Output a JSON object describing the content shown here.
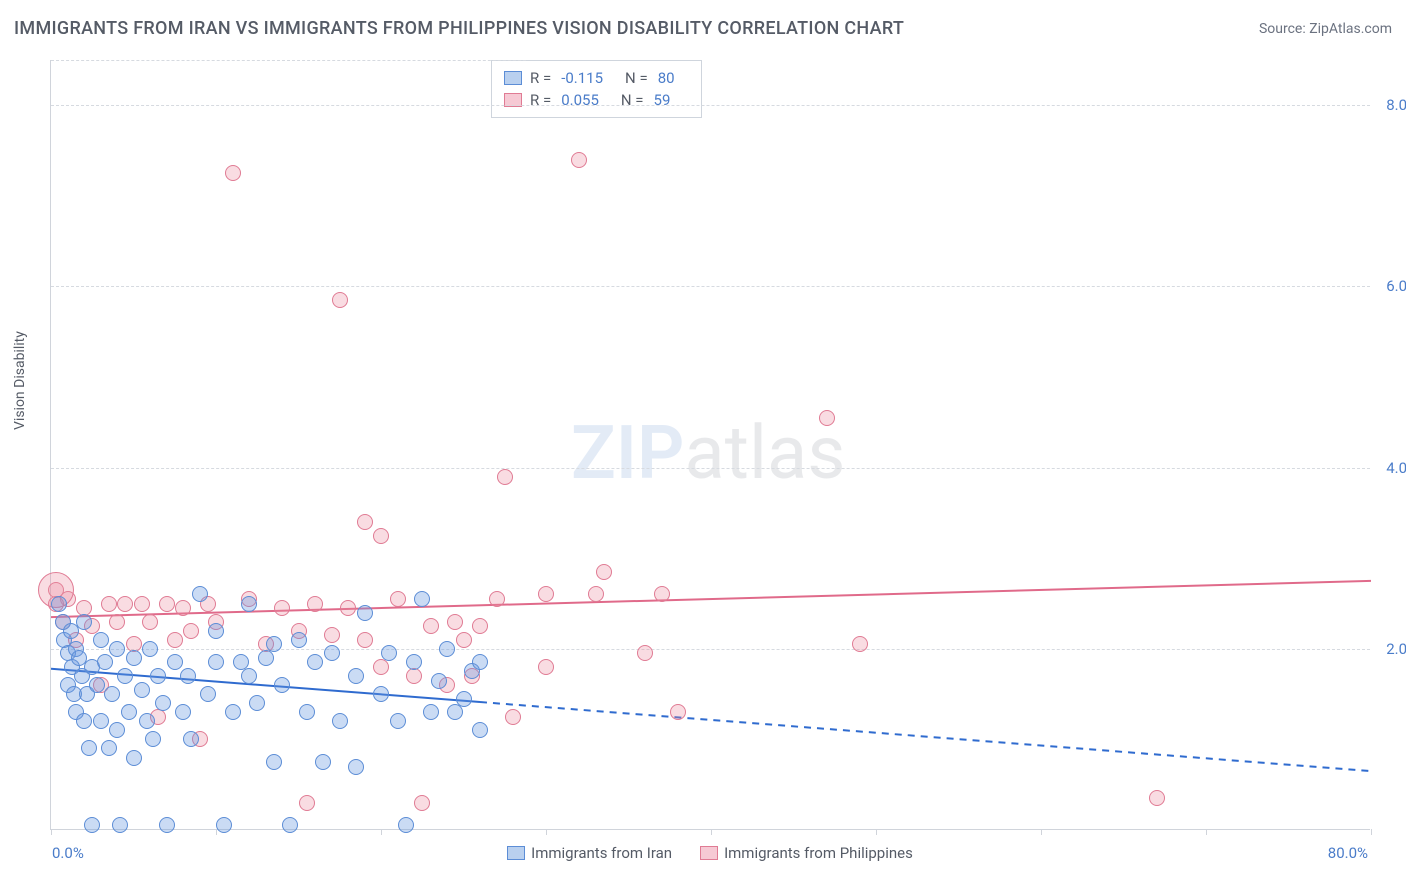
{
  "header": {
    "title": "IMMIGRANTS FROM IRAN VS IMMIGRANTS FROM PHILIPPINES VISION DISABILITY CORRELATION CHART",
    "source": "Source: ZipAtlas.com"
  },
  "watermark": {
    "part1": "ZIP",
    "part2": "atlas"
  },
  "chart": {
    "type": "scatter",
    "ylabel": "Vision Disability",
    "xlim": [
      0,
      80
    ],
    "ylim": [
      0,
      8.5
    ],
    "x_min_label": "0.0%",
    "x_max_label": "80.0%",
    "xtick_positions": [
      0,
      10,
      20,
      30,
      40,
      50,
      60,
      70,
      80
    ],
    "yticks": [
      {
        "v": 2.0,
        "label": "2.0%"
      },
      {
        "v": 4.0,
        "label": "4.0%"
      },
      {
        "v": 6.0,
        "label": "6.0%"
      },
      {
        "v": 8.0,
        "label": "8.0%"
      }
    ],
    "grid_color": "#d6dae0",
    "label_color": "#4a7cc9",
    "series": {
      "iran": {
        "label": "Immigrants from Iran",
        "swatch_fill": "#b9d0ef",
        "swatch_border": "#5c8dd6",
        "R": "-0.115",
        "N": "80",
        "trend": {
          "y_at_x0": 1.78,
          "y_at_x80": 0.65,
          "solid_until_x": 26,
          "color": "#2f6bcf",
          "width": 2
        },
        "marker_radius": 8,
        "points": [
          [
            0.5,
            2.5
          ],
          [
            0.7,
            2.3
          ],
          [
            0.8,
            2.1
          ],
          [
            1.0,
            1.95
          ],
          [
            1.0,
            1.6
          ],
          [
            1.2,
            2.2
          ],
          [
            1.3,
            1.8
          ],
          [
            1.4,
            1.5
          ],
          [
            1.5,
            2.0
          ],
          [
            1.5,
            1.3
          ],
          [
            1.7,
            1.9
          ],
          [
            1.9,
            1.7
          ],
          [
            2.0,
            1.2
          ],
          [
            2.0,
            2.3
          ],
          [
            2.2,
            1.5
          ],
          [
            2.3,
            0.9
          ],
          [
            2.5,
            1.8
          ],
          [
            2.5,
            0.05
          ],
          [
            2.8,
            1.6
          ],
          [
            3.0,
            2.1
          ],
          [
            3.0,
            1.2
          ],
          [
            3.3,
            1.85
          ],
          [
            3.5,
            0.9
          ],
          [
            3.7,
            1.5
          ],
          [
            4.0,
            2.0
          ],
          [
            4.0,
            1.1
          ],
          [
            4.2,
            0.05
          ],
          [
            4.5,
            1.7
          ],
          [
            4.7,
            1.3
          ],
          [
            5.0,
            1.9
          ],
          [
            5.0,
            0.8
          ],
          [
            5.5,
            1.55
          ],
          [
            5.8,
            1.2
          ],
          [
            6.0,
            2.0
          ],
          [
            6.2,
            1.0
          ],
          [
            6.5,
            1.7
          ],
          [
            6.8,
            1.4
          ],
          [
            7.0,
            0.05
          ],
          [
            7.5,
            1.85
          ],
          [
            8.0,
            1.3
          ],
          [
            8.3,
            1.7
          ],
          [
            8.5,
            1.0
          ],
          [
            9.0,
            2.6
          ],
          [
            9.5,
            1.5
          ],
          [
            10.0,
            1.85
          ],
          [
            10.0,
            2.2
          ],
          [
            10.5,
            0.05
          ],
          [
            11.0,
            1.3
          ],
          [
            11.5,
            1.85
          ],
          [
            12.0,
            1.7
          ],
          [
            12.0,
            2.5
          ],
          [
            12.5,
            1.4
          ],
          [
            13.0,
            1.9
          ],
          [
            13.5,
            0.75
          ],
          [
            13.5,
            2.05
          ],
          [
            14.0,
            1.6
          ],
          [
            14.5,
            0.05
          ],
          [
            15.0,
            2.1
          ],
          [
            15.5,
            1.3
          ],
          [
            16.0,
            1.85
          ],
          [
            16.5,
            0.75
          ],
          [
            17.0,
            1.95
          ],
          [
            17.5,
            1.2
          ],
          [
            18.5,
            1.7
          ],
          [
            18.5,
            0.7
          ],
          [
            19.0,
            2.4
          ],
          [
            20.0,
            1.5
          ],
          [
            20.5,
            1.95
          ],
          [
            21.0,
            1.2
          ],
          [
            21.5,
            0.05
          ],
          [
            22.0,
            1.85
          ],
          [
            22.5,
            2.55
          ],
          [
            23.0,
            1.3
          ],
          [
            23.5,
            1.65
          ],
          [
            24.0,
            2.0
          ],
          [
            24.5,
            1.3
          ],
          [
            25.0,
            1.45
          ],
          [
            25.5,
            1.75
          ],
          [
            26.0,
            1.1
          ],
          [
            26.0,
            1.85
          ]
        ]
      },
      "philippines": {
        "label": "Immigrants from Philippines",
        "swatch_fill": "#f6c9d4",
        "swatch_border": "#e07b94",
        "R": "0.055",
        "N": "59",
        "trend": {
          "y_at_x0": 2.35,
          "y_at_x80": 2.75,
          "solid_until_x": 80,
          "color": "#e06a8a",
          "width": 2
        },
        "marker_radius": 8,
        "points": [
          [
            0.3,
            2.65
          ],
          [
            0.7,
            2.3
          ],
          [
            1.0,
            2.55
          ],
          [
            1.5,
            2.1
          ],
          [
            2.0,
            2.45
          ],
          [
            2.5,
            2.25
          ],
          [
            3.0,
            1.6
          ],
          [
            3.5,
            2.5
          ],
          [
            4.0,
            2.3
          ],
          [
            4.5,
            2.5
          ],
          [
            5.0,
            2.05
          ],
          [
            5.5,
            2.5
          ],
          [
            6.0,
            2.3
          ],
          [
            6.5,
            1.25
          ],
          [
            7.0,
            2.5
          ],
          [
            7.5,
            2.1
          ],
          [
            8.0,
            2.45
          ],
          [
            8.5,
            2.2
          ],
          [
            9.0,
            1.0
          ],
          [
            9.5,
            2.5
          ],
          [
            10.0,
            2.3
          ],
          [
            11.0,
            7.25
          ],
          [
            12.0,
            2.55
          ],
          [
            13.0,
            2.05
          ],
          [
            14.0,
            2.45
          ],
          [
            15.0,
            2.2
          ],
          [
            15.5,
            0.3
          ],
          [
            16.0,
            2.5
          ],
          [
            17.0,
            2.15
          ],
          [
            17.5,
            5.85
          ],
          [
            18.0,
            2.45
          ],
          [
            19.0,
            2.1
          ],
          [
            19.0,
            3.4
          ],
          [
            20.0,
            1.8
          ],
          [
            20.0,
            3.25
          ],
          [
            21.0,
            2.55
          ],
          [
            22.0,
            1.7
          ],
          [
            22.5,
            0.3
          ],
          [
            23.0,
            2.25
          ],
          [
            24.0,
            1.6
          ],
          [
            24.5,
            2.3
          ],
          [
            25.0,
            2.1
          ],
          [
            25.5,
            1.7
          ],
          [
            26.0,
            2.25
          ],
          [
            27.0,
            2.55
          ],
          [
            27.5,
            3.9
          ],
          [
            28.0,
            1.25
          ],
          [
            30.0,
            1.8
          ],
          [
            30.0,
            2.6
          ],
          [
            32.0,
            7.4
          ],
          [
            33.0,
            2.6
          ],
          [
            33.5,
            2.85
          ],
          [
            36.0,
            1.95
          ],
          [
            37.0,
            2.6
          ],
          [
            38.0,
            1.3
          ],
          [
            47.0,
            4.55
          ],
          [
            49.0,
            2.05
          ],
          [
            67.0,
            0.35
          ],
          [
            0.3,
            2.5
          ]
        ],
        "extra_big_point": {
          "x": 0.3,
          "y": 2.65,
          "r": 18
        }
      }
    },
    "bottom_legend": [
      {
        "label": "Immigrants from Iran",
        "fill": "#b9d0ef",
        "border": "#5c8dd6"
      },
      {
        "label": "Immigrants from Philippines",
        "fill": "#f6c9d4",
        "border": "#e07b94"
      }
    ]
  }
}
